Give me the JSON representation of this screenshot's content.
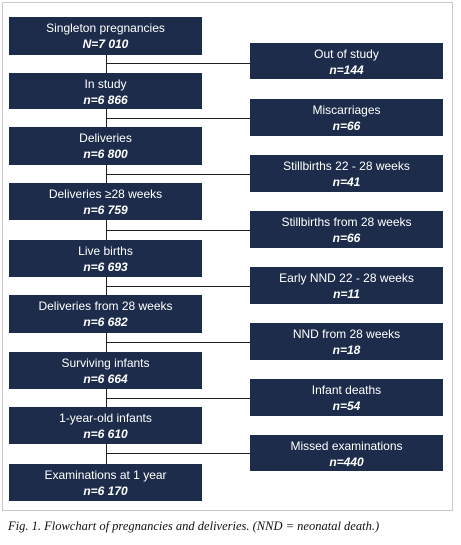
{
  "main_steps": [
    {
      "label": "Singleton pregnancies",
      "count": "N=7 010"
    },
    {
      "label": "In study",
      "count": "n=6 866"
    },
    {
      "label": "Deliveries",
      "count": "n=6 800"
    },
    {
      "label": "Deliveries ≥28 weeks",
      "count": "n=6 759"
    },
    {
      "label": "Live births",
      "count": "n=6 693"
    },
    {
      "label": "Deliveries from 28 weeks",
      "count": "n=6 682"
    },
    {
      "label": "Surviving infants",
      "count": "n=6 664"
    },
    {
      "label": "1-year-old infants",
      "count": "n=6 610"
    },
    {
      "label": "Examinations at 1 year",
      "count": "n=6 170"
    }
  ],
  "exclusions": [
    {
      "label": "Out of study",
      "count": "n=144"
    },
    {
      "label": "Miscarriages",
      "count": "n=66"
    },
    {
      "label": "Stillbirths 22 - 28 weeks",
      "count": "n=41"
    },
    {
      "label": "Stillbirths from 28 weeks",
      "count": "n=66"
    },
    {
      "label": "Early NND 22 - 28 weeks",
      "count": "n=11"
    },
    {
      "label": "NND from 28 weeks",
      "count": "n=18"
    },
    {
      "label": "Infant deaths",
      "count": "n=54"
    },
    {
      "label": "Missed examinations",
      "count": "n=440"
    }
  ],
  "caption": "Fig. 1. Flowchart of pregnancies and deliveries. (NND = neonatal death.)",
  "colors": {
    "box_fill": "#1d2c4a",
    "box_text": "#ffffff",
    "connector": "#1f1f1f"
  }
}
